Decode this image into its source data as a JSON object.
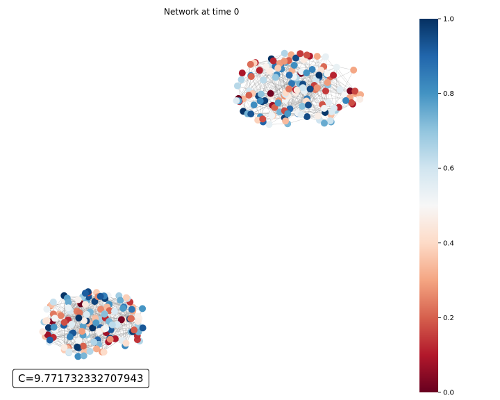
{
  "title": "Network at time 0",
  "annotation": "C=9.771732332707943",
  "colorbar": {
    "colormap": "RdBu",
    "min": 0.0,
    "max": 1.0,
    "ticks": [
      "0.0",
      "0.2",
      "0.4",
      "0.6",
      "0.8",
      "1.0"
    ]
  },
  "networks": [
    {
      "name": "upper cluster",
      "node_count": 150
    },
    {
      "name": "lower cluster",
      "node_count": 150
    }
  ],
  "colors": {
    "edge": "#9a9a9a",
    "text": "#000000",
    "background": "#ffffff"
  }
}
